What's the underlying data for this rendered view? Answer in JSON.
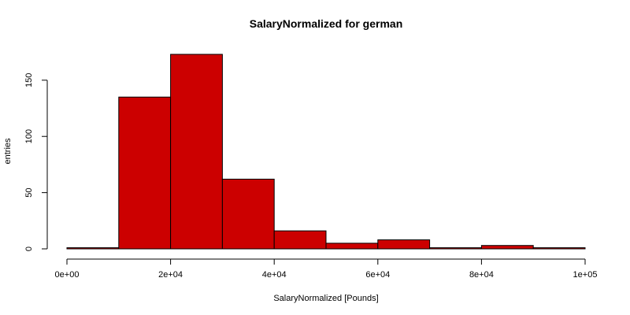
{
  "chart_data": {
    "type": "bar",
    "title": "SalaryNormalized for german",
    "xlabel": "SalaryNormalized [Pounds]",
    "ylabel": "entries",
    "bin_edges": [
      0,
      10000,
      20000,
      30000,
      40000,
      50000,
      60000,
      70000,
      80000,
      90000,
      100000
    ],
    "values": [
      1,
      135,
      173,
      62,
      16,
      5,
      8,
      1,
      3,
      1
    ],
    "xlim": [
      0,
      100000
    ],
    "ylim": [
      0,
      173
    ],
    "x_ticks": [
      0,
      20000,
      40000,
      60000,
      80000,
      100000
    ],
    "x_tick_labels": [
      "0e+00",
      "2e+04",
      "4e+04",
      "6e+04",
      "8e+04",
      "1e+05"
    ],
    "y_ticks": [
      0,
      50,
      100,
      150
    ],
    "y_tick_labels": [
      "0",
      "50",
      "100",
      "150"
    ],
    "bar_color": "#cc0000",
    "bar_border_color": "#000000",
    "grid": false
  }
}
